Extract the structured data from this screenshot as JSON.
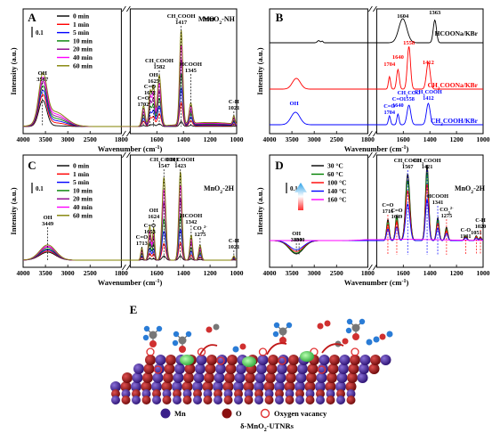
{
  "axes": {
    "xlabel": "Wavenumber (cm",
    "xlabel_sup": "-1",
    "xlabel_end": ")",
    "ylabel": "Intensity (a.u.)",
    "xticks_left": [
      "4000",
      "3500",
      "3000",
      "2500",
      "1800"
    ],
    "xticks_right": [
      "1600",
      "1400",
      "1200",
      "1000"
    ],
    "scalebar": "0.1"
  },
  "chart_data": [
    {
      "panel": "A",
      "type": "line",
      "tag": "MnO2-NH",
      "xlim": [
        4000,
        1000
      ],
      "legend_position": "top-left",
      "series": [
        {
          "name": "0 min",
          "color": "#000000"
        },
        {
          "name": "1 min",
          "color": "#ff0000"
        },
        {
          "name": "5 min",
          "color": "#0000ff"
        },
        {
          "name": "10 min",
          "color": "#008000"
        },
        {
          "name": "20 min",
          "color": "#8b008b"
        },
        {
          "name": "40 min",
          "color": "#ff00ff"
        },
        {
          "name": "60 min",
          "color": "#808000"
        }
      ],
      "annotations": [
        {
          "text": "OH",
          "sub": "3567",
          "x": 3567
        },
        {
          "text": "C=O",
          "sub": "1702",
          "x": 1702
        },
        {
          "text": "C=O",
          "sub": "1652",
          "x": 1652
        },
        {
          "text": "OH",
          "sub": "1625",
          "x": 1625
        },
        {
          "text": "CH3COOH",
          "sub": "1582",
          "x": 1582
        },
        {
          "text": "CH3COOH",
          "sub": "1417",
          "x": 1417
        },
        {
          "text": "HCOOH",
          "sub": "1345",
          "x": 1345
        },
        {
          "text": "C-H",
          "sub": "1021",
          "x": 1021
        }
      ]
    },
    {
      "panel": "B",
      "type": "line",
      "xlim": [
        4000,
        1000
      ],
      "series": [
        {
          "name": "HCOONa/KBr",
          "color": "#000000"
        },
        {
          "name": "CH3COONa/KBr",
          "color": "#ff0000"
        },
        {
          "name": "CH3COOH/KBr",
          "color": "#0000ff"
        }
      ],
      "annotations": [
        {
          "text": "1604",
          "x": 1604,
          "series": "HCOONa/KBr"
        },
        {
          "text": "1363",
          "x": 1363,
          "series": "HCOONa/KBr"
        },
        {
          "text": "1558",
          "x": 1558,
          "series": "CH3COONa/KBr"
        },
        {
          "text": "1640",
          "x": 1640,
          "series": "CH3COONa/KBr"
        },
        {
          "text": "1412",
          "x": 1412,
          "series": "CH3COONa/KBr"
        },
        {
          "text": "1704",
          "x": 1704,
          "series": "CH3COONa/KBr"
        },
        {
          "text": "OH",
          "x": 3450,
          "series": "CH3COOH/KBr"
        },
        {
          "text": "CH3COO",
          "sub": "1558",
          "x": 1558,
          "series": "CH3COOH/KBr"
        },
        {
          "text": "CH3COOH",
          "sub": "1412",
          "x": 1412,
          "series": "CH3COOH/KBr"
        },
        {
          "text": "C=O",
          "sub": "1640",
          "x": 1640,
          "series": "CH3COOH/KBr"
        },
        {
          "text": "C=O",
          "sub": "1704",
          "x": 1704,
          "series": "CH3COOH/KBr"
        }
      ]
    },
    {
      "panel": "C",
      "type": "line",
      "tag": "MnO2-2H",
      "xlim": [
        4000,
        1000
      ],
      "legend_position": "top-left",
      "series": [
        {
          "name": "0 min",
          "color": "#000000"
        },
        {
          "name": "1 min",
          "color": "#ff0000"
        },
        {
          "name": "5 min",
          "color": "#0000ff"
        },
        {
          "name": "10 min",
          "color": "#008000"
        },
        {
          "name": "20 min",
          "color": "#8b008b"
        },
        {
          "name": "40 min",
          "color": "#ff00ff"
        },
        {
          "name": "60 min",
          "color": "#808000"
        }
      ],
      "annotations": [
        {
          "text": "OH",
          "sub": "3449",
          "x": 3449
        },
        {
          "text": "C=O",
          "sub": "1713",
          "x": 1713
        },
        {
          "text": "C=O",
          "sub": "1653",
          "x": 1653
        },
        {
          "text": "OH",
          "sub": "1624",
          "x": 1624
        },
        {
          "text": "CH3COOH",
          "sub": "1547",
          "x": 1547
        },
        {
          "text": "CH3COOH",
          "sub": "1423",
          "x": 1423
        },
        {
          "text": "HCOOH",
          "sub": "1342",
          "x": 1342
        },
        {
          "text": "CO3",
          "sub": "1275",
          "x": 1275
        },
        {
          "text": "C-H",
          "sub": "1021",
          "x": 1021
        }
      ]
    },
    {
      "panel": "D",
      "type": "line",
      "tag": "MnO2-2H",
      "xlim": [
        4000,
        1000
      ],
      "legend_position": "top-left",
      "series": [
        {
          "name": "30 °C",
          "color": "#000000"
        },
        {
          "name": "60 °C",
          "color": "#008000"
        },
        {
          "name": "100 °C",
          "color": "#ff0000"
        },
        {
          "name": "140 °C",
          "color": "#0000ff"
        },
        {
          "name": "160 °C",
          "color": "#ff00ff"
        }
      ],
      "annotations": [
        {
          "text": "OH",
          "sub": "3400",
          "x": 3400
        },
        {
          "text": "",
          "sub": "3340",
          "x": 3340
        },
        {
          "text": "C=O",
          "sub": "1716",
          "x": 1716
        },
        {
          "text": "C=O",
          "sub": "1649",
          "x": 1649
        },
        {
          "text": "CH3COOH",
          "sub": "1567",
          "x": 1567
        },
        {
          "text": "CH3COOH",
          "sub": "1421",
          "x": 1421
        },
        {
          "text": "HCOOH",
          "sub": "1341",
          "x": 1341
        },
        {
          "text": "CO3",
          "sub": "1275",
          "x": 1275
        },
        {
          "text": "C-O",
          "sub": "1131",
          "x": 1131
        },
        {
          "text": "",
          "sub": "1051",
          "x": 1051
        },
        {
          "text": "C-H",
          "sub": "1020",
          "x": 1020
        }
      ]
    }
  ],
  "panel_labels": [
    "A",
    "B",
    "C",
    "D",
    "E"
  ],
  "schematic": {
    "legend": [
      {
        "label": "Mn",
        "color": "#3a1f8a"
      },
      {
        "label": "O",
        "color": "#8b1010"
      },
      {
        "label": "Oxygen vacancy",
        "color": "#e03030"
      }
    ],
    "caption": "δ-MnO",
    "caption_sub": "2",
    "caption_end": "-UTNRs"
  }
}
